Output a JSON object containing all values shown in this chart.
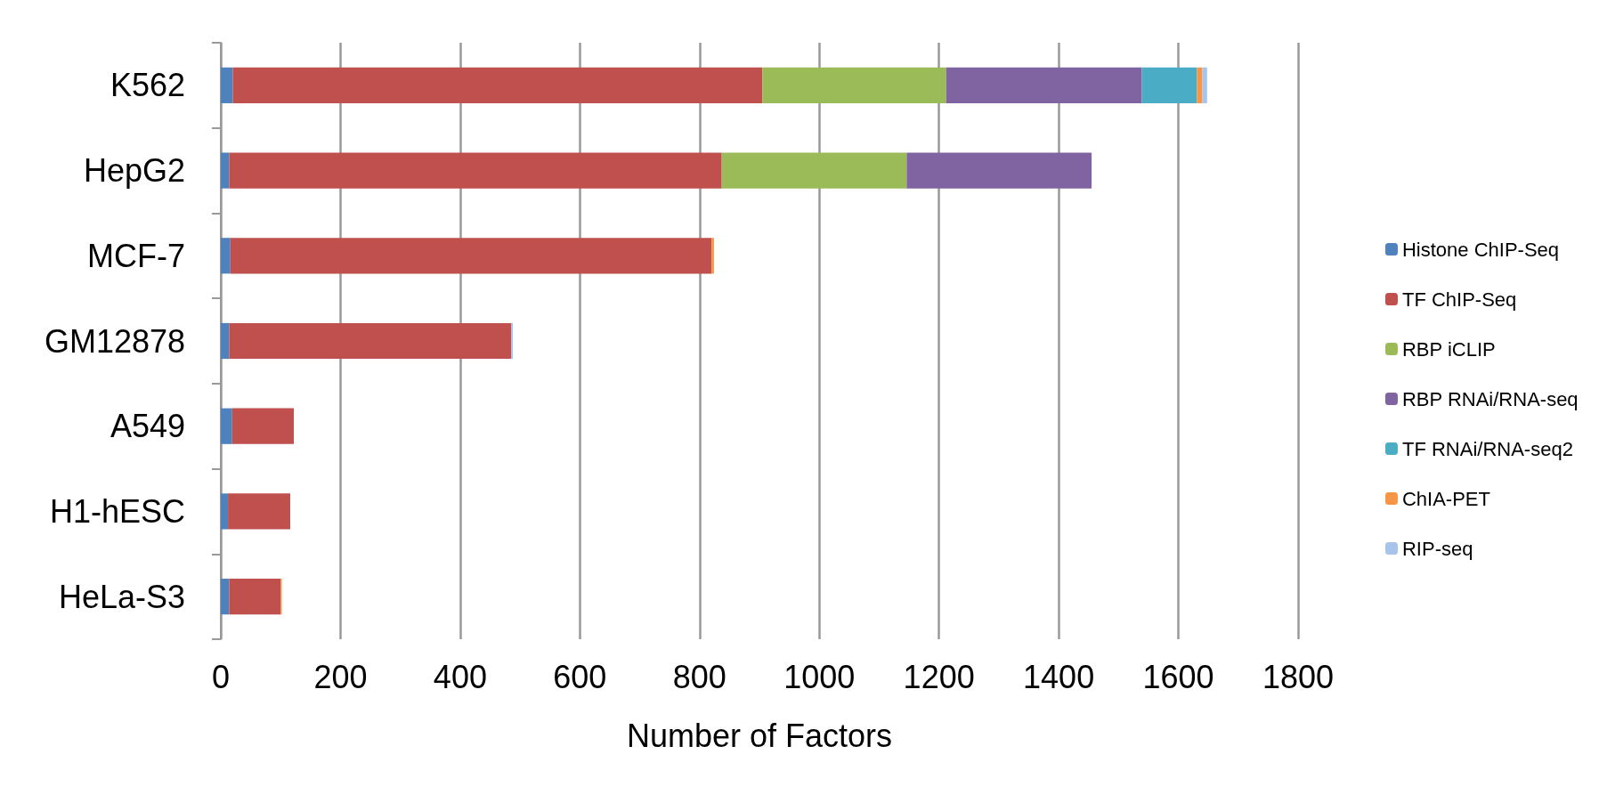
{
  "chart_data": {
    "type": "bar",
    "orientation": "horizontal",
    "stacked": true,
    "xlabel": "Number of Factors",
    "categories": [
      "K562",
      "HepG2",
      "MCF-7",
      "GM12878",
      "A549",
      "H1-hESC",
      "HeLa-S3"
    ],
    "series": [
      {
        "name": "Histone ChIP-Seq",
        "color": "#4f81bd",
        "values": [
          20,
          14,
          16,
          14,
          19,
          12,
          14
        ]
      },
      {
        "name": "TF ChIP-Seq",
        "color": "#c0504d",
        "values": [
          885,
          823,
          804,
          471,
          103,
          104,
          86
        ]
      },
      {
        "name": "RBP iCLIP",
        "color": "#9bbb59",
        "values": [
          307,
          309,
          null,
          null,
          null,
          null,
          null
        ]
      },
      {
        "name": "RBP RNAi/RNA-seq",
        "color": "#8064a2",
        "values": [
          327,
          309,
          null,
          null,
          null,
          null,
          null
        ]
      },
      {
        "name": "TF RNAi/RNA-seq2",
        "color": "#4bacc6",
        "values": [
          92,
          null,
          null,
          null,
          null,
          null,
          null
        ]
      },
      {
        "name": "ChIA-PET",
        "color": "#f79646",
        "values": [
          9,
          null,
          4,
          null,
          null,
          null,
          2
        ]
      },
      {
        "name": "RIP-seq",
        "color": "#a9c4eb",
        "values": [
          8,
          null,
          null,
          3,
          null,
          null,
          null
        ]
      }
    ],
    "xlim": [
      0,
      1800
    ],
    "xticks": [
      0,
      200,
      400,
      600,
      800,
      1000,
      1200,
      1400,
      1600,
      1800
    ],
    "grid": "x",
    "legend": "right"
  }
}
